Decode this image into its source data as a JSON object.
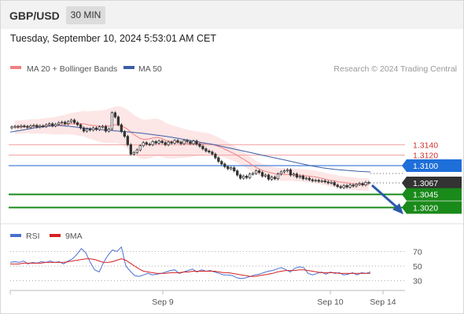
{
  "header": {
    "symbol": "GBP/USD",
    "timeframe": "30 MIN",
    "timestamp": "Tuesday, September 10, 2024 5:53:01 AM CET"
  },
  "chart_data": [
    {
      "type": "candlestick",
      "legend": [
        {
          "name": "MA 20 + Bollinger Bands",
          "color": "#f08080"
        },
        {
          "name": "MA 50",
          "color": "#3b5ea8"
        }
      ],
      "credit": "Research © 2024 Trading Central",
      "ylim": [
        1.2995,
        1.3235
      ],
      "levels": [
        {
          "value": 1.314,
          "label": "1.3140",
          "style": "resistance",
          "color": "#e05050"
        },
        {
          "value": 1.312,
          "label": "1.3120",
          "style": "resistance",
          "color": "#e05050"
        },
        {
          "value": 1.31,
          "label": "1.3100",
          "style": "pivot",
          "color": "#1e6fd9"
        },
        {
          "value": 1.3067,
          "label": "1.3067",
          "style": "last-price",
          "color": "#333333"
        },
        {
          "value": 1.3045,
          "label": "1.3045",
          "style": "support",
          "color": "#1a8a1a"
        },
        {
          "value": 1.302,
          "label": "1.3020",
          "style": "support",
          "color": "#1a8a1a"
        }
      ],
      "close": [
        1.3174,
        1.3175,
        1.3174,
        1.3176,
        1.3175,
        1.3173,
        1.3176,
        1.3177,
        1.3174,
        1.3176,
        1.3175,
        1.3178,
        1.318,
        1.3176,
        1.3179,
        1.3182,
        1.3183,
        1.318,
        1.3184,
        1.3187,
        1.3182,
        1.3178,
        1.3172,
        1.3166,
        1.317,
        1.3168,
        1.3172,
        1.3169,
        1.3174,
        1.3175,
        1.3166,
        1.317,
        1.3201,
        1.3193,
        1.3178,
        1.3165,
        1.3156,
        1.314,
        1.3122,
        1.3125,
        1.313,
        1.3138,
        1.3144,
        1.3141,
        1.314,
        1.3146,
        1.3143,
        1.3147,
        1.3144,
        1.314,
        1.3145,
        1.3143,
        1.3148,
        1.3145,
        1.3142,
        1.3148,
        1.3146,
        1.3142,
        1.3147,
        1.3141,
        1.3137,
        1.3132,
        1.3128,
        1.3126,
        1.3122,
        1.3115,
        1.3108,
        1.3103,
        1.3098,
        1.3094,
        1.3096,
        1.309,
        1.3082,
        1.3076,
        1.308,
        1.3077,
        1.3084,
        1.3085,
        1.309,
        1.3087,
        1.308,
        1.3082,
        1.3074,
        1.3078,
        1.3075,
        1.3084,
        1.3088,
        1.309,
        1.3092,
        1.3082,
        1.3084,
        1.3078,
        1.308,
        1.3075,
        1.3076,
        1.3073,
        1.3071,
        1.3072,
        1.307,
        1.3071,
        1.3069,
        1.3067,
        1.3068,
        1.3063,
        1.306,
        1.3058,
        1.3062,
        1.3059,
        1.3063,
        1.3061,
        1.3064,
        1.3066,
        1.3063,
        1.3068,
        1.3067
      ],
      "ma20": [
        1.3173,
        1.3174,
        1.3174,
        1.3175,
        1.3175,
        1.3175,
        1.3175,
        1.3176,
        1.3176,
        1.3176,
        1.3177,
        1.3178,
        1.3179,
        1.318,
        1.318,
        1.318,
        1.318,
        1.3178,
        1.3177,
        1.3176,
        1.3175,
        1.3175,
        1.3176,
        1.3178,
        1.3178,
        1.3175,
        1.317,
        1.3163,
        1.3157,
        1.3152,
        1.315,
        1.3151,
        1.3153,
        1.3154,
        1.3152,
        1.3148,
        1.3146,
        1.3145,
        1.3144,
        1.3143,
        1.3142,
        1.3142,
        1.3142,
        1.3142,
        1.3142,
        1.3142,
        1.314,
        1.3137,
        1.3134,
        1.313,
        1.3126,
        1.3122,
        1.3117,
        1.3112,
        1.3107,
        1.3101,
        1.3096,
        1.3092,
        1.3089,
        1.3087,
        1.3085,
        1.3084,
        1.3083,
        1.3083,
        1.3083,
        1.3082,
        1.3082,
        1.3081,
        1.308,
        1.3079,
        1.3078,
        1.3076,
        1.3074,
        1.3072,
        1.3071,
        1.3069,
        1.3068,
        1.3067,
        1.3066,
        1.3065,
        1.3064,
        1.3064,
        1.3064
      ],
      "ma50": [
        1.3164,
        1.3168,
        1.3172,
        1.3175,
        1.3177,
        1.3175,
        1.3172,
        1.317,
        1.3168,
        1.3166,
        1.3164,
        1.3162,
        1.3159,
        1.3156,
        1.3152,
        1.3148,
        1.3144,
        1.314,
        1.3135,
        1.313,
        1.3125,
        1.312,
        1.3115,
        1.311,
        1.3105,
        1.31,
        1.3096,
        1.3093,
        1.3091,
        1.3089,
        1.3088
      ],
      "rsi": {
        "legend": [
          {
            "name": "RSI",
            "color": "#4a6fd1"
          },
          {
            "name": "9MA",
            "color": "#d62020"
          }
        ],
        "ylim": [
          20,
          80
        ],
        "ticks": [
          70,
          50,
          30
        ],
        "rsi_values": [
          55,
          56,
          55,
          57,
          53,
          55,
          54,
          56,
          55,
          57,
          55,
          56,
          53,
          57,
          60,
          66,
          74,
          68,
          55,
          45,
          42,
          55,
          65,
          72,
          70,
          76,
          50,
          43,
          37,
          36,
          38,
          40,
          38,
          39,
          40,
          42,
          44,
          45,
          40,
          42,
          44,
          46,
          42,
          45,
          43,
          44,
          42,
          40,
          38,
          38,
          37,
          34,
          33,
          34,
          36,
          38,
          39,
          41,
          43,
          44,
          46,
          48,
          45,
          42,
          47,
          49,
          48,
          40,
          38,
          40,
          42,
          39,
          42,
          40,
          41,
          38,
          39,
          41,
          38,
          41,
          40,
          42
        ],
        "ma_values": [
          53,
          53,
          53,
          54,
          54,
          54,
          54,
          54,
          55,
          55,
          55,
          55,
          55,
          56,
          57,
          58,
          59,
          60,
          60,
          59,
          57,
          55,
          55,
          56,
          58,
          60,
          58,
          54,
          50,
          46,
          43,
          42,
          41,
          40,
          40,
          40,
          41,
          41,
          41,
          42,
          42,
          43,
          43,
          43,
          43,
          43,
          43,
          42,
          41,
          41,
          40,
          39,
          38,
          37,
          36,
          36,
          37,
          38,
          39,
          40,
          42,
          43,
          44,
          44,
          44,
          45,
          45,
          44,
          43,
          42,
          41,
          41,
          41,
          41,
          40,
          40,
          40,
          40,
          40,
          40,
          40,
          40
        ]
      },
      "x_tick_labels": [
        "Sep 9",
        "Sep 10",
        "Sep 14"
      ]
    }
  ]
}
